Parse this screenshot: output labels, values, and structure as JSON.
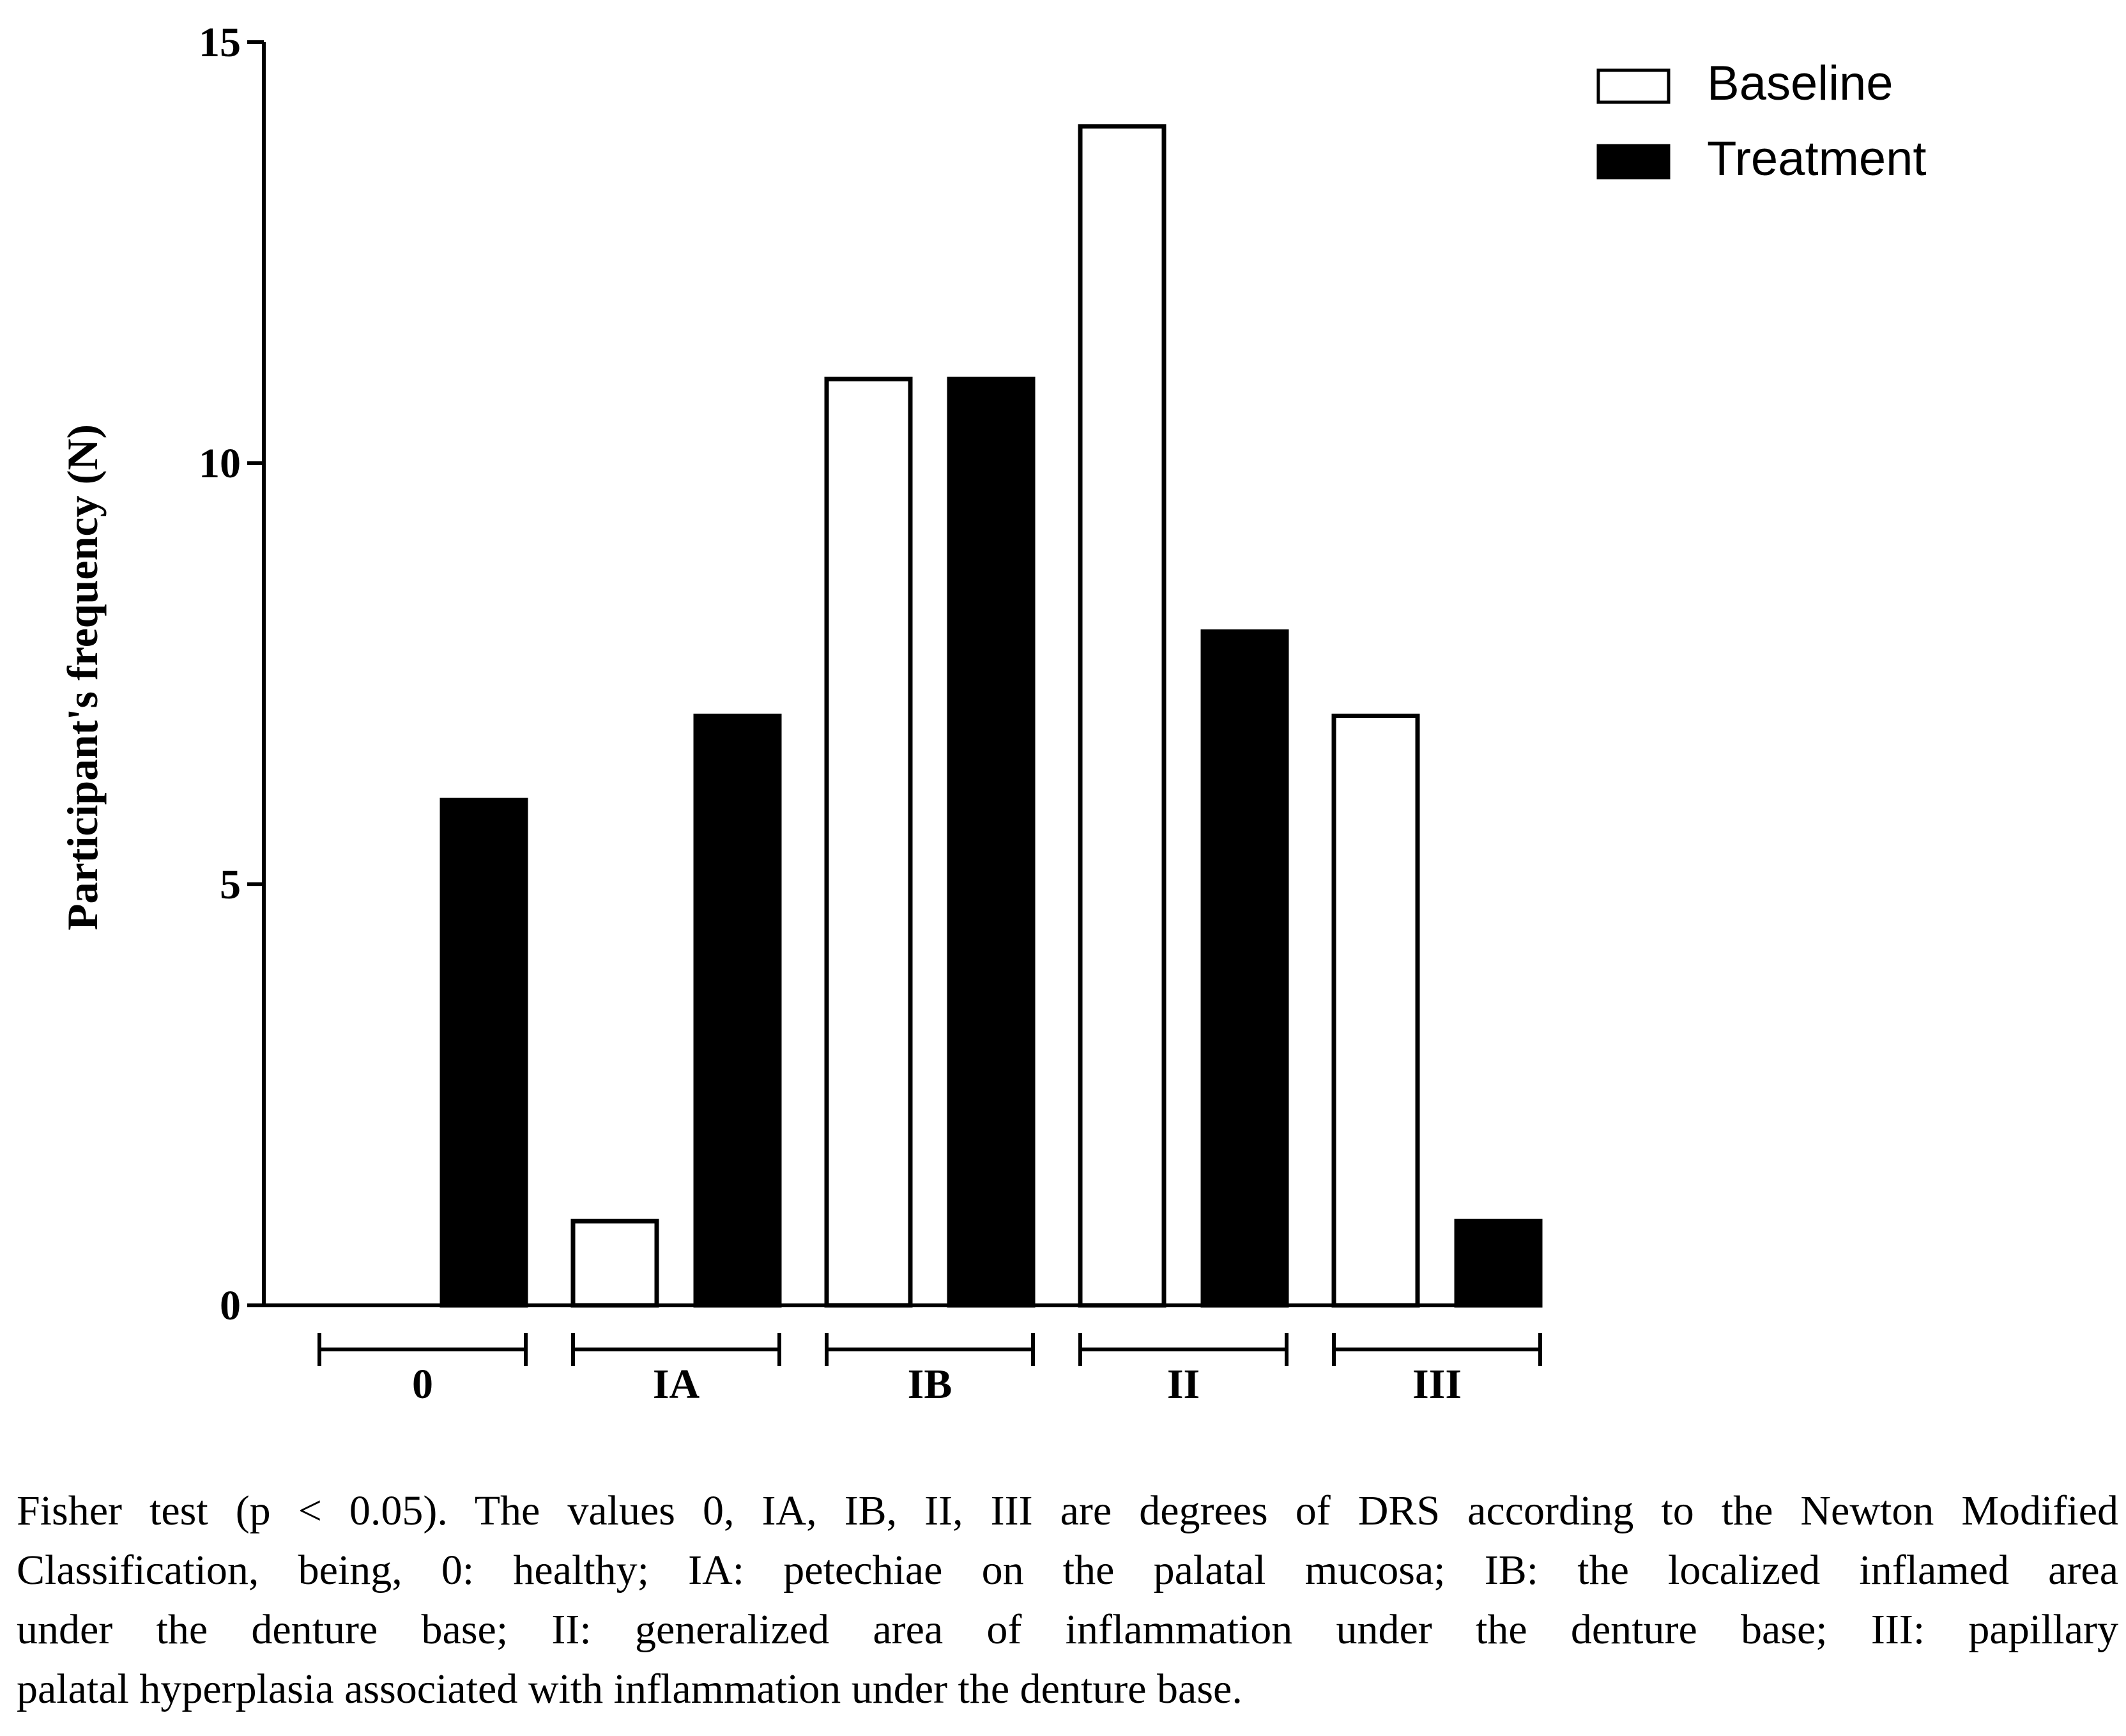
{
  "chart_data": {
    "type": "bar",
    "ylabel": "Participant's frequency (N)",
    "xlabel": "",
    "ylim": [
      0,
      15
    ],
    "yticks": [
      0,
      5,
      10,
      15
    ],
    "categories": [
      "0",
      "IA",
      "IB",
      "II",
      "III"
    ],
    "series": [
      {
        "name": "Baseline",
        "values": [
          0,
          1,
          11,
          14,
          7
        ],
        "fill": "#ffffff",
        "stroke": "#000000"
      },
      {
        "name": "Treatment",
        "values": [
          6,
          7,
          11,
          8,
          1
        ],
        "fill": "#000000",
        "stroke": "#000000"
      }
    ],
    "legend_position": "top-right",
    "grid": false
  },
  "caption": {
    "lines": [
      "Fisher test (p < 0.05). The values 0, IA, IB, II, III are degrees of DRS according to the Newton Modified",
      "Classification, being, 0: healthy; IA: petechiae on the palatal mucosa; IB: the localized inflamed area",
      "under the denture base; II: generalized area of inflammation under the denture base; III: papillary",
      "palatal hyperplasia associated with inflammation under the denture base."
    ]
  }
}
